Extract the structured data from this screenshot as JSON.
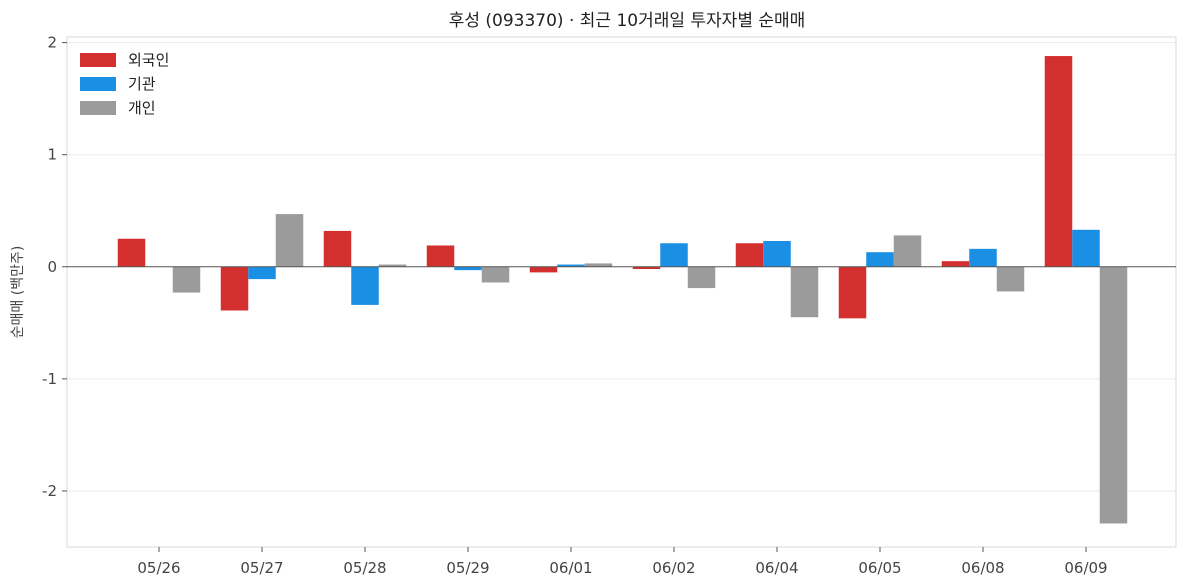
{
  "chart_data": {
    "type": "bar",
    "title": "후성 (093370)  ·  최근 10거래일 투자자별 순매매",
    "xlabel": "",
    "ylabel": "순매매 (백만주)",
    "ylim": [
      -2.5,
      2.05
    ],
    "yticks": [
      -2,
      -1,
      0,
      1,
      2
    ],
    "ytick_labels": [
      "-2",
      "-1",
      "0",
      "1",
      "2"
    ],
    "grid": "horizontal",
    "legend_position": "top-left",
    "categories": [
      "05/26",
      "05/27",
      "05/28",
      "05/29",
      "06/01",
      "06/02",
      "06/04",
      "06/05",
      "06/08",
      "06/09"
    ],
    "series": [
      {
        "name": "외국인",
        "color": "#d32f2f",
        "values": [
          0.25,
          -0.39,
          0.32,
          0.19,
          -0.05,
          -0.02,
          0.21,
          -0.46,
          0.05,
          1.88
        ]
      },
      {
        "name": "기관",
        "color": "#1a8fe3",
        "values": [
          0.0,
          -0.11,
          -0.34,
          -0.03,
          0.02,
          0.21,
          0.23,
          0.13,
          0.16,
          0.33
        ]
      },
      {
        "name": "개인",
        "color": "#9b9b9b",
        "values": [
          -0.23,
          0.47,
          0.02,
          -0.14,
          0.03,
          -0.19,
          -0.45,
          0.28,
          -0.22,
          -2.29
        ]
      }
    ]
  }
}
